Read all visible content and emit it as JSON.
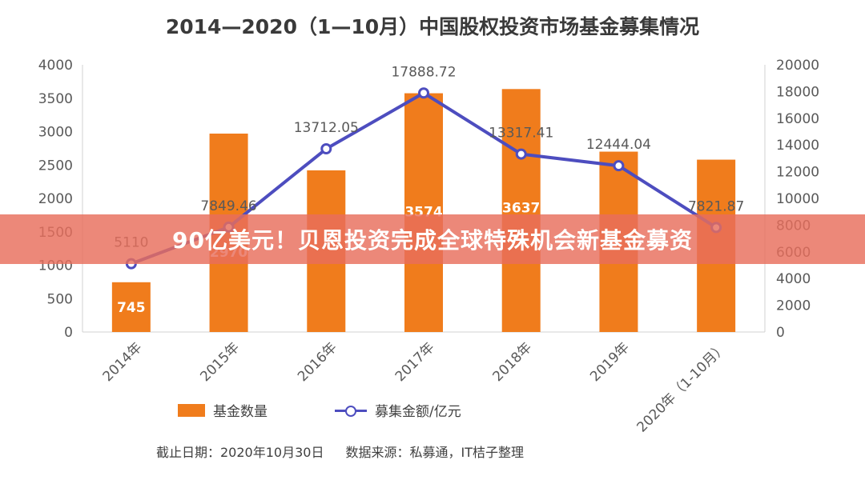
{
  "chart_data": {
    "type": "bar",
    "title": "2014—2020（1—10月）中国股权投资市场基金募集情况",
    "categories": [
      "2014年",
      "2015年",
      "2016年",
      "2017年",
      "2018年",
      "2019年",
      "2020年（1-10月）"
    ],
    "series": [
      {
        "name": "基金数量",
        "type": "bar",
        "axis": "left",
        "values": [
          745,
          2970,
          2420,
          3574,
          3637,
          2700,
          2580
        ],
        "labels": [
          "745",
          "2970",
          "",
          "3574",
          "3637",
          "",
          ""
        ]
      },
      {
        "name": "募集金额/亿元",
        "type": "line",
        "axis": "right",
        "values": [
          5110,
          7849.46,
          13712.05,
          17888.72,
          13317.41,
          12444.04,
          7821.87
        ],
        "labels": [
          "5110",
          "7849.46",
          "13712.05",
          "17888.72",
          "13317.41",
          "12444.04",
          "7821.87"
        ]
      }
    ],
    "y_left": {
      "min": 0,
      "max": 4000,
      "ticks": [
        0,
        500,
        1000,
        1500,
        2000,
        2500,
        3000,
        3500,
        4000
      ]
    },
    "y_right": {
      "min": 0,
      "max": 20000,
      "ticks": [
        0,
        2000,
        4000,
        6000,
        8000,
        10000,
        12000,
        14000,
        16000,
        18000,
        20000
      ]
    },
    "grid": false,
    "legend": "bottom",
    "colors": {
      "bar": "#f07c1c",
      "line": "#4d4dbf"
    }
  },
  "note": {
    "date": "截止日期：2020年10月30日",
    "source": "数据来源：私募通，IT桔子整理"
  },
  "banner": {
    "text": "90亿美元！贝恩投资完成全球特殊机会新基金募资",
    "color": "#e86e5c"
  }
}
